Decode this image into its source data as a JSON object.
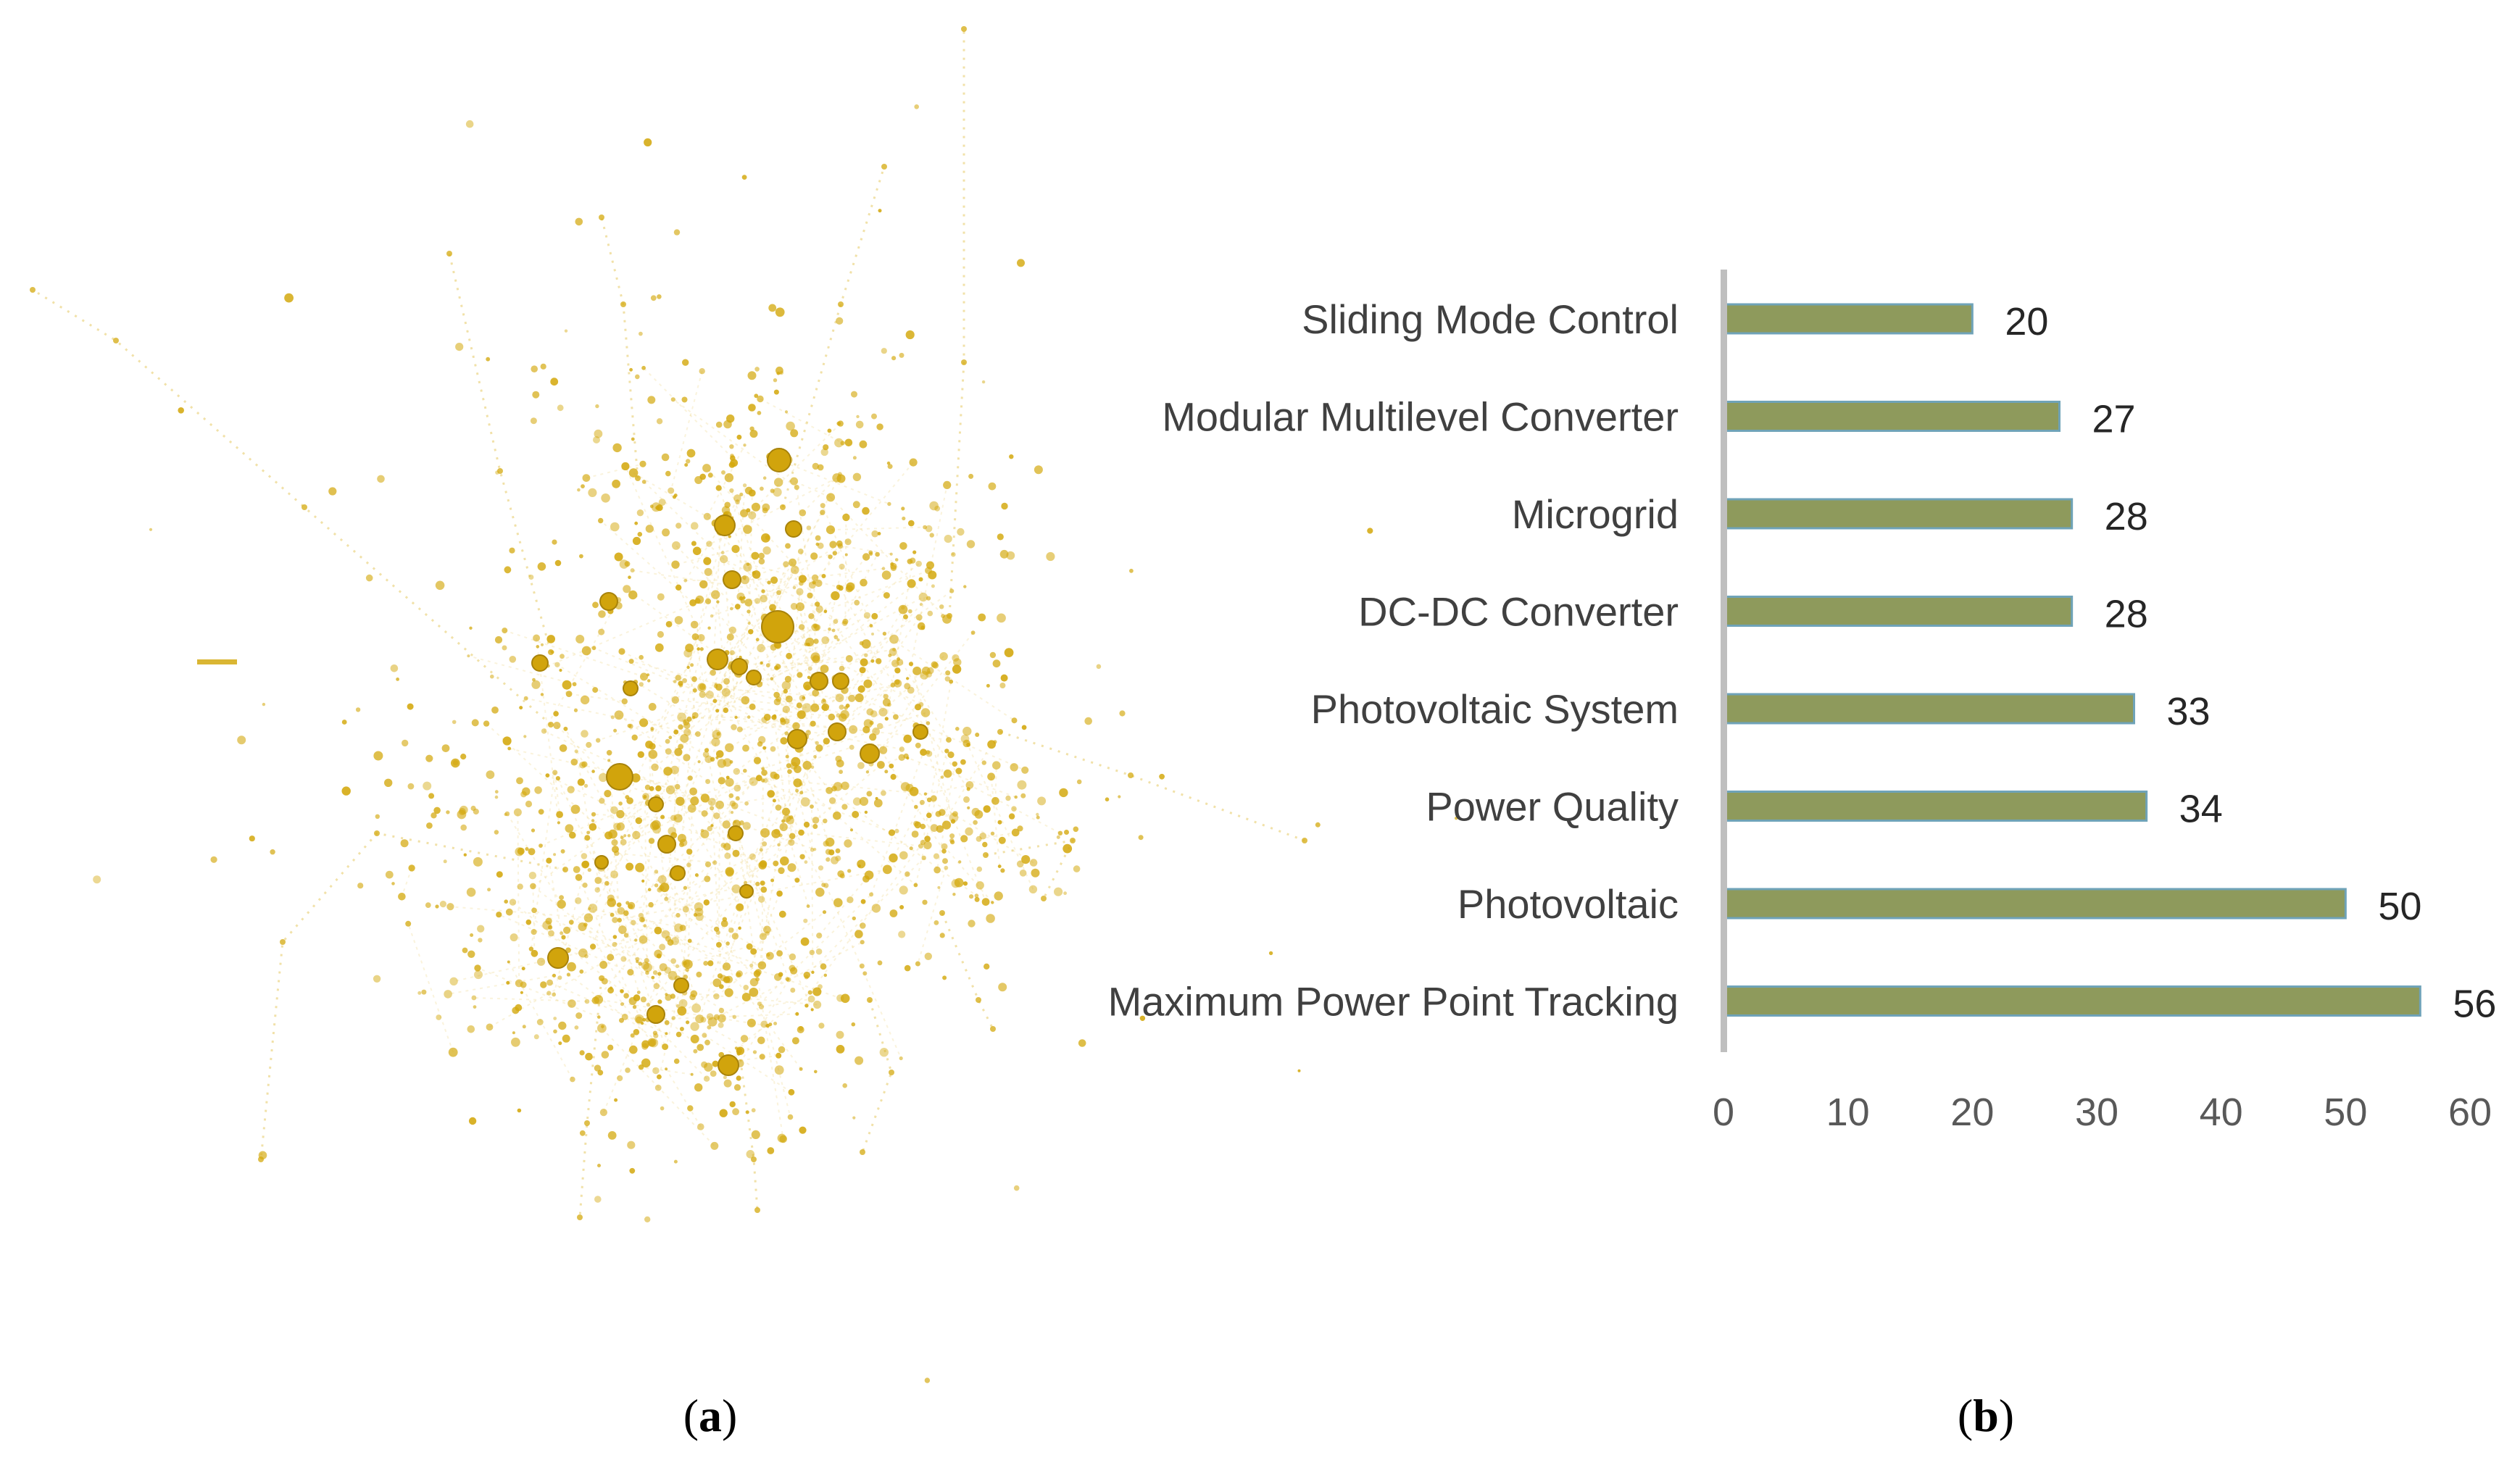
{
  "panels": {
    "a": {
      "label_open": "(",
      "label_letter": "a",
      "label_close": ")"
    },
    "b": {
      "label_open": "(",
      "label_letter": "b",
      "label_close": ")"
    }
  },
  "network": {
    "type": "network-graph",
    "node_color": "#d4a90f",
    "edge_color": "#e6c960"
  },
  "chart_data": {
    "type": "bar",
    "orientation": "horizontal",
    "title": "",
    "xlabel": "",
    "ylabel": "",
    "categories": [
      "Sliding Mode Control",
      "Modular Multilevel Converter",
      "Microgrid",
      "DC-DC Converter",
      "Photovoltaic System",
      "Power Quality",
      "Photovoltaic ",
      "Maximum Power Point Tracking"
    ],
    "values": [
      20,
      27,
      28,
      28,
      33,
      34,
      50,
      56
    ],
    "xlim": [
      0,
      60
    ],
    "xticks": [
      0,
      10,
      20,
      30,
      40,
      50,
      60
    ],
    "grid": false,
    "bar_color": "#8e9a5c",
    "bar_edge_color": "#6fa3b8",
    "axis_color": "#bfbfbf"
  }
}
